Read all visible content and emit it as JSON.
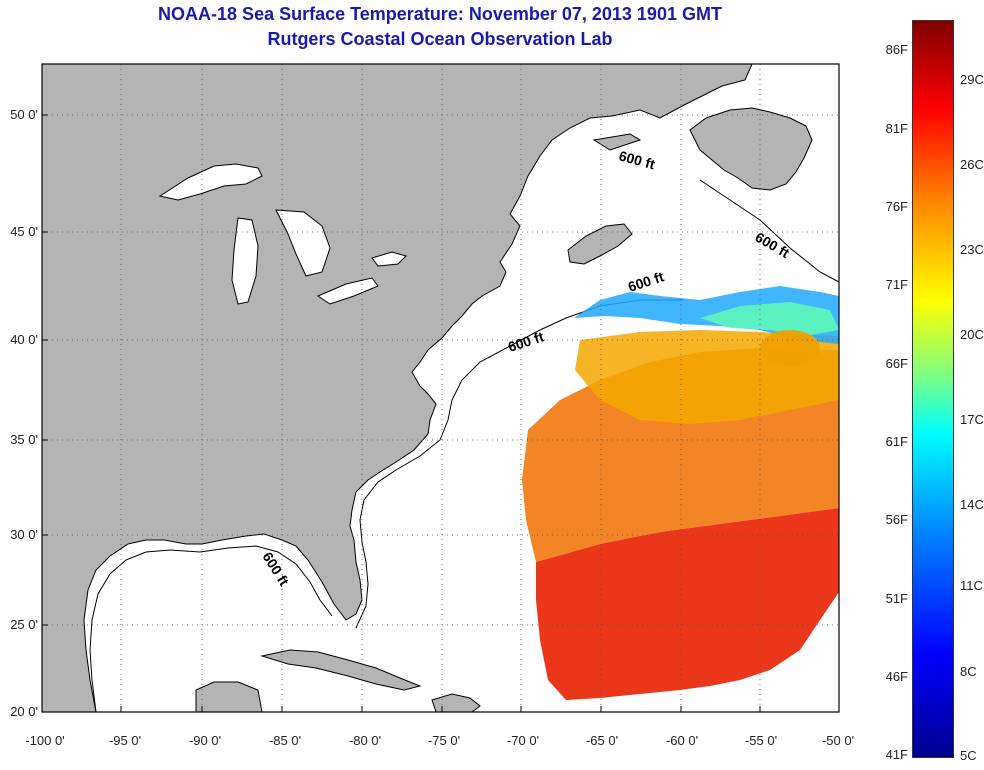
{
  "title_line1": "NOAA-18 Sea Surface Temperature:  November 07, 2013 1901 GMT",
  "title_line2": "Rutgers Coastal Ocean Observation Lab",
  "lat_labels": [
    "50 0'",
    "45 0'",
    "40 0'",
    "35 0'",
    "30 0'",
    "25 0'",
    "20 0'"
  ],
  "lon_labels": [
    "-100 0'",
    "-95 0'",
    "-90 0'",
    "-85 0'",
    "-80 0'",
    "-75 0'",
    "-70 0'",
    "-65 0'",
    "-60 0'",
    "-55 0'",
    "-50 0'"
  ],
  "contour_label": "600 ft",
  "colorbar": {
    "f_labels": [
      "86F",
      "81F",
      "76F",
      "71F",
      "66F",
      "61F",
      "56F",
      "51F",
      "46F",
      "41F"
    ],
    "c_labels": [
      "29C",
      "26C",
      "23C",
      "20C",
      "17C",
      "14C",
      "11C",
      "8C",
      "5C"
    ],
    "colors": [
      "#00008f",
      "#0000ff",
      "#0080ff",
      "#00ffff",
      "#80ff80",
      "#ffff00",
      "#ff8000",
      "#ff0000",
      "#800000"
    ]
  },
  "colors": {
    "land": "#b4b4b4",
    "title": "#1a1ab0",
    "water": "#ffffff"
  }
}
